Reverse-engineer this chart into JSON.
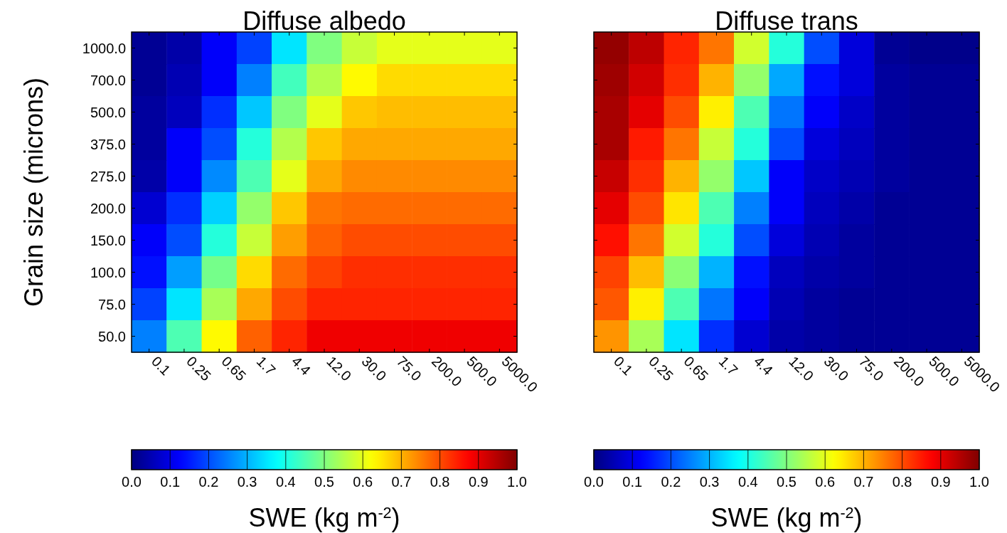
{
  "chart_data": [
    {
      "type": "heatmap",
      "title": "Diffuse albedo",
      "ylabel": "Grain size (microns)",
      "clabel": "SWE (kg m$^{-2}$)",
      "categories": [
        "0.1",
        "0.25",
        "0.65",
        "1.7",
        "4.4",
        "12.0",
        "30.0",
        "75.0",
        "200.0",
        "500.0",
        "5000.0"
      ],
      "y_categories": [
        "1000.0",
        "700.0",
        "500.0",
        "375.0",
        "275.0",
        "200.0",
        "150.0",
        "100.0",
        "75.0",
        "50.0"
      ],
      "cells": [
        [
          0.02,
          0.04,
          0.12,
          0.19,
          0.35,
          0.5,
          0.57,
          0.6,
          0.6,
          0.6,
          0.6
        ],
        [
          0.02,
          0.05,
          0.12,
          0.25,
          0.44,
          0.55,
          0.63,
          0.66,
          0.66,
          0.66,
          0.66
        ],
        [
          0.03,
          0.06,
          0.17,
          0.32,
          0.5,
          0.6,
          0.68,
          0.69,
          0.69,
          0.69,
          0.69
        ],
        [
          0.03,
          0.12,
          0.2,
          0.41,
          0.55,
          0.68,
          0.71,
          0.71,
          0.71,
          0.71,
          0.71
        ],
        [
          0.04,
          0.12,
          0.26,
          0.45,
          0.6,
          0.71,
          0.74,
          0.74,
          0.74,
          0.74,
          0.74
        ],
        [
          0.08,
          0.17,
          0.33,
          0.52,
          0.68,
          0.76,
          0.77,
          0.77,
          0.77,
          0.77,
          0.77
        ],
        [
          0.12,
          0.2,
          0.41,
          0.57,
          0.72,
          0.78,
          0.8,
          0.8,
          0.8,
          0.8,
          0.8
        ],
        [
          0.14,
          0.28,
          0.49,
          0.66,
          0.77,
          0.81,
          0.83,
          0.83,
          0.83,
          0.83,
          0.83
        ],
        [
          0.19,
          0.35,
          0.54,
          0.71,
          0.8,
          0.84,
          0.84,
          0.84,
          0.84,
          0.84,
          0.84
        ],
        [
          0.25,
          0.45,
          0.63,
          0.78,
          0.84,
          0.89,
          0.89,
          0.89,
          0.89,
          0.89,
          0.89
        ]
      ],
      "clim": [
        0,
        1
      ],
      "cticks": [
        {
          "value": 0,
          "label": "0.0"
        },
        {
          "value": 0.1,
          "label": "0.1"
        },
        {
          "value": 0.2,
          "label": "0.2"
        },
        {
          "value": 0.3,
          "label": "0.3"
        },
        {
          "value": 0.4,
          "label": "0.4"
        },
        {
          "value": 0.5,
          "label": "0.5"
        },
        {
          "value": 0.6,
          "label": "0.6"
        },
        {
          "value": 0.7,
          "label": "0.7"
        },
        {
          "value": 0.8,
          "label": "0.8"
        },
        {
          "value": 0.9,
          "label": "0.9"
        },
        {
          "value": 1,
          "label": "1.0"
        }
      ]
    },
    {
      "type": "heatmap",
      "title": "Diffuse trans",
      "clabel": "SWE (kg m$^{-2}$)",
      "tick_labels": "x",
      "categories": [
        "0.1",
        "0.25",
        "0.65",
        "1.7",
        "4.4",
        "12.0",
        "30.0",
        "75.0",
        "200.0",
        "500.0",
        "5000.0"
      ],
      "y_categories": [
        "1000.0",
        "700.0",
        "500.0",
        "375.0",
        "275.0",
        "200.0",
        "150.0",
        "100.0",
        "75.0",
        "50.0"
      ],
      "cells": [
        [
          0.98,
          0.94,
          0.84,
          0.76,
          0.58,
          0.41,
          0.2,
          0.09,
          0.02,
          0.01,
          0.01
        ],
        [
          0.97,
          0.92,
          0.83,
          0.7,
          0.52,
          0.29,
          0.14,
          0.09,
          0.03,
          0.02,
          0.02
        ],
        [
          0.96,
          0.9,
          0.8,
          0.64,
          0.45,
          0.24,
          0.12,
          0.07,
          0.03,
          0.02,
          0.02
        ],
        [
          0.96,
          0.85,
          0.76,
          0.57,
          0.41,
          0.2,
          0.09,
          0.06,
          0.03,
          0.02,
          0.02
        ],
        [
          0.93,
          0.83,
          0.7,
          0.52,
          0.32,
          0.12,
          0.07,
          0.05,
          0.03,
          0.02,
          0.02
        ],
        [
          0.9,
          0.8,
          0.65,
          0.45,
          0.25,
          0.12,
          0.06,
          0.04,
          0.02,
          0.02,
          0.02
        ],
        [
          0.86,
          0.76,
          0.58,
          0.41,
          0.2,
          0.09,
          0.05,
          0.03,
          0.02,
          0.02,
          0.02
        ],
        [
          0.81,
          0.69,
          0.51,
          0.3,
          0.14,
          0.06,
          0.04,
          0.03,
          0.02,
          0.02,
          0.02
        ],
        [
          0.79,
          0.64,
          0.45,
          0.24,
          0.12,
          0.05,
          0.03,
          0.02,
          0.02,
          0.02,
          0.02
        ],
        [
          0.73,
          0.54,
          0.35,
          0.17,
          0.08,
          0.04,
          0.03,
          0.02,
          0.02,
          0.02,
          0.02
        ]
      ],
      "clim": [
        0,
        1
      ],
      "cticks": [
        {
          "value": 0,
          "label": "0.0"
        },
        {
          "value": 0.1,
          "label": "0.1"
        },
        {
          "value": 0.2,
          "label": "0.2"
        },
        {
          "value": 0.3,
          "label": "0.3"
        },
        {
          "value": 0.4,
          "label": "0.4"
        },
        {
          "value": 0.5,
          "label": "0.5"
        },
        {
          "value": 0.6,
          "label": "0.6"
        },
        {
          "value": 0.7,
          "label": "0.7"
        },
        {
          "value": 0.8,
          "label": "0.8"
        },
        {
          "value": 0.9,
          "label": "0.9"
        },
        {
          "value": 1,
          "label": "1.0"
        }
      ]
    }
  ]
}
